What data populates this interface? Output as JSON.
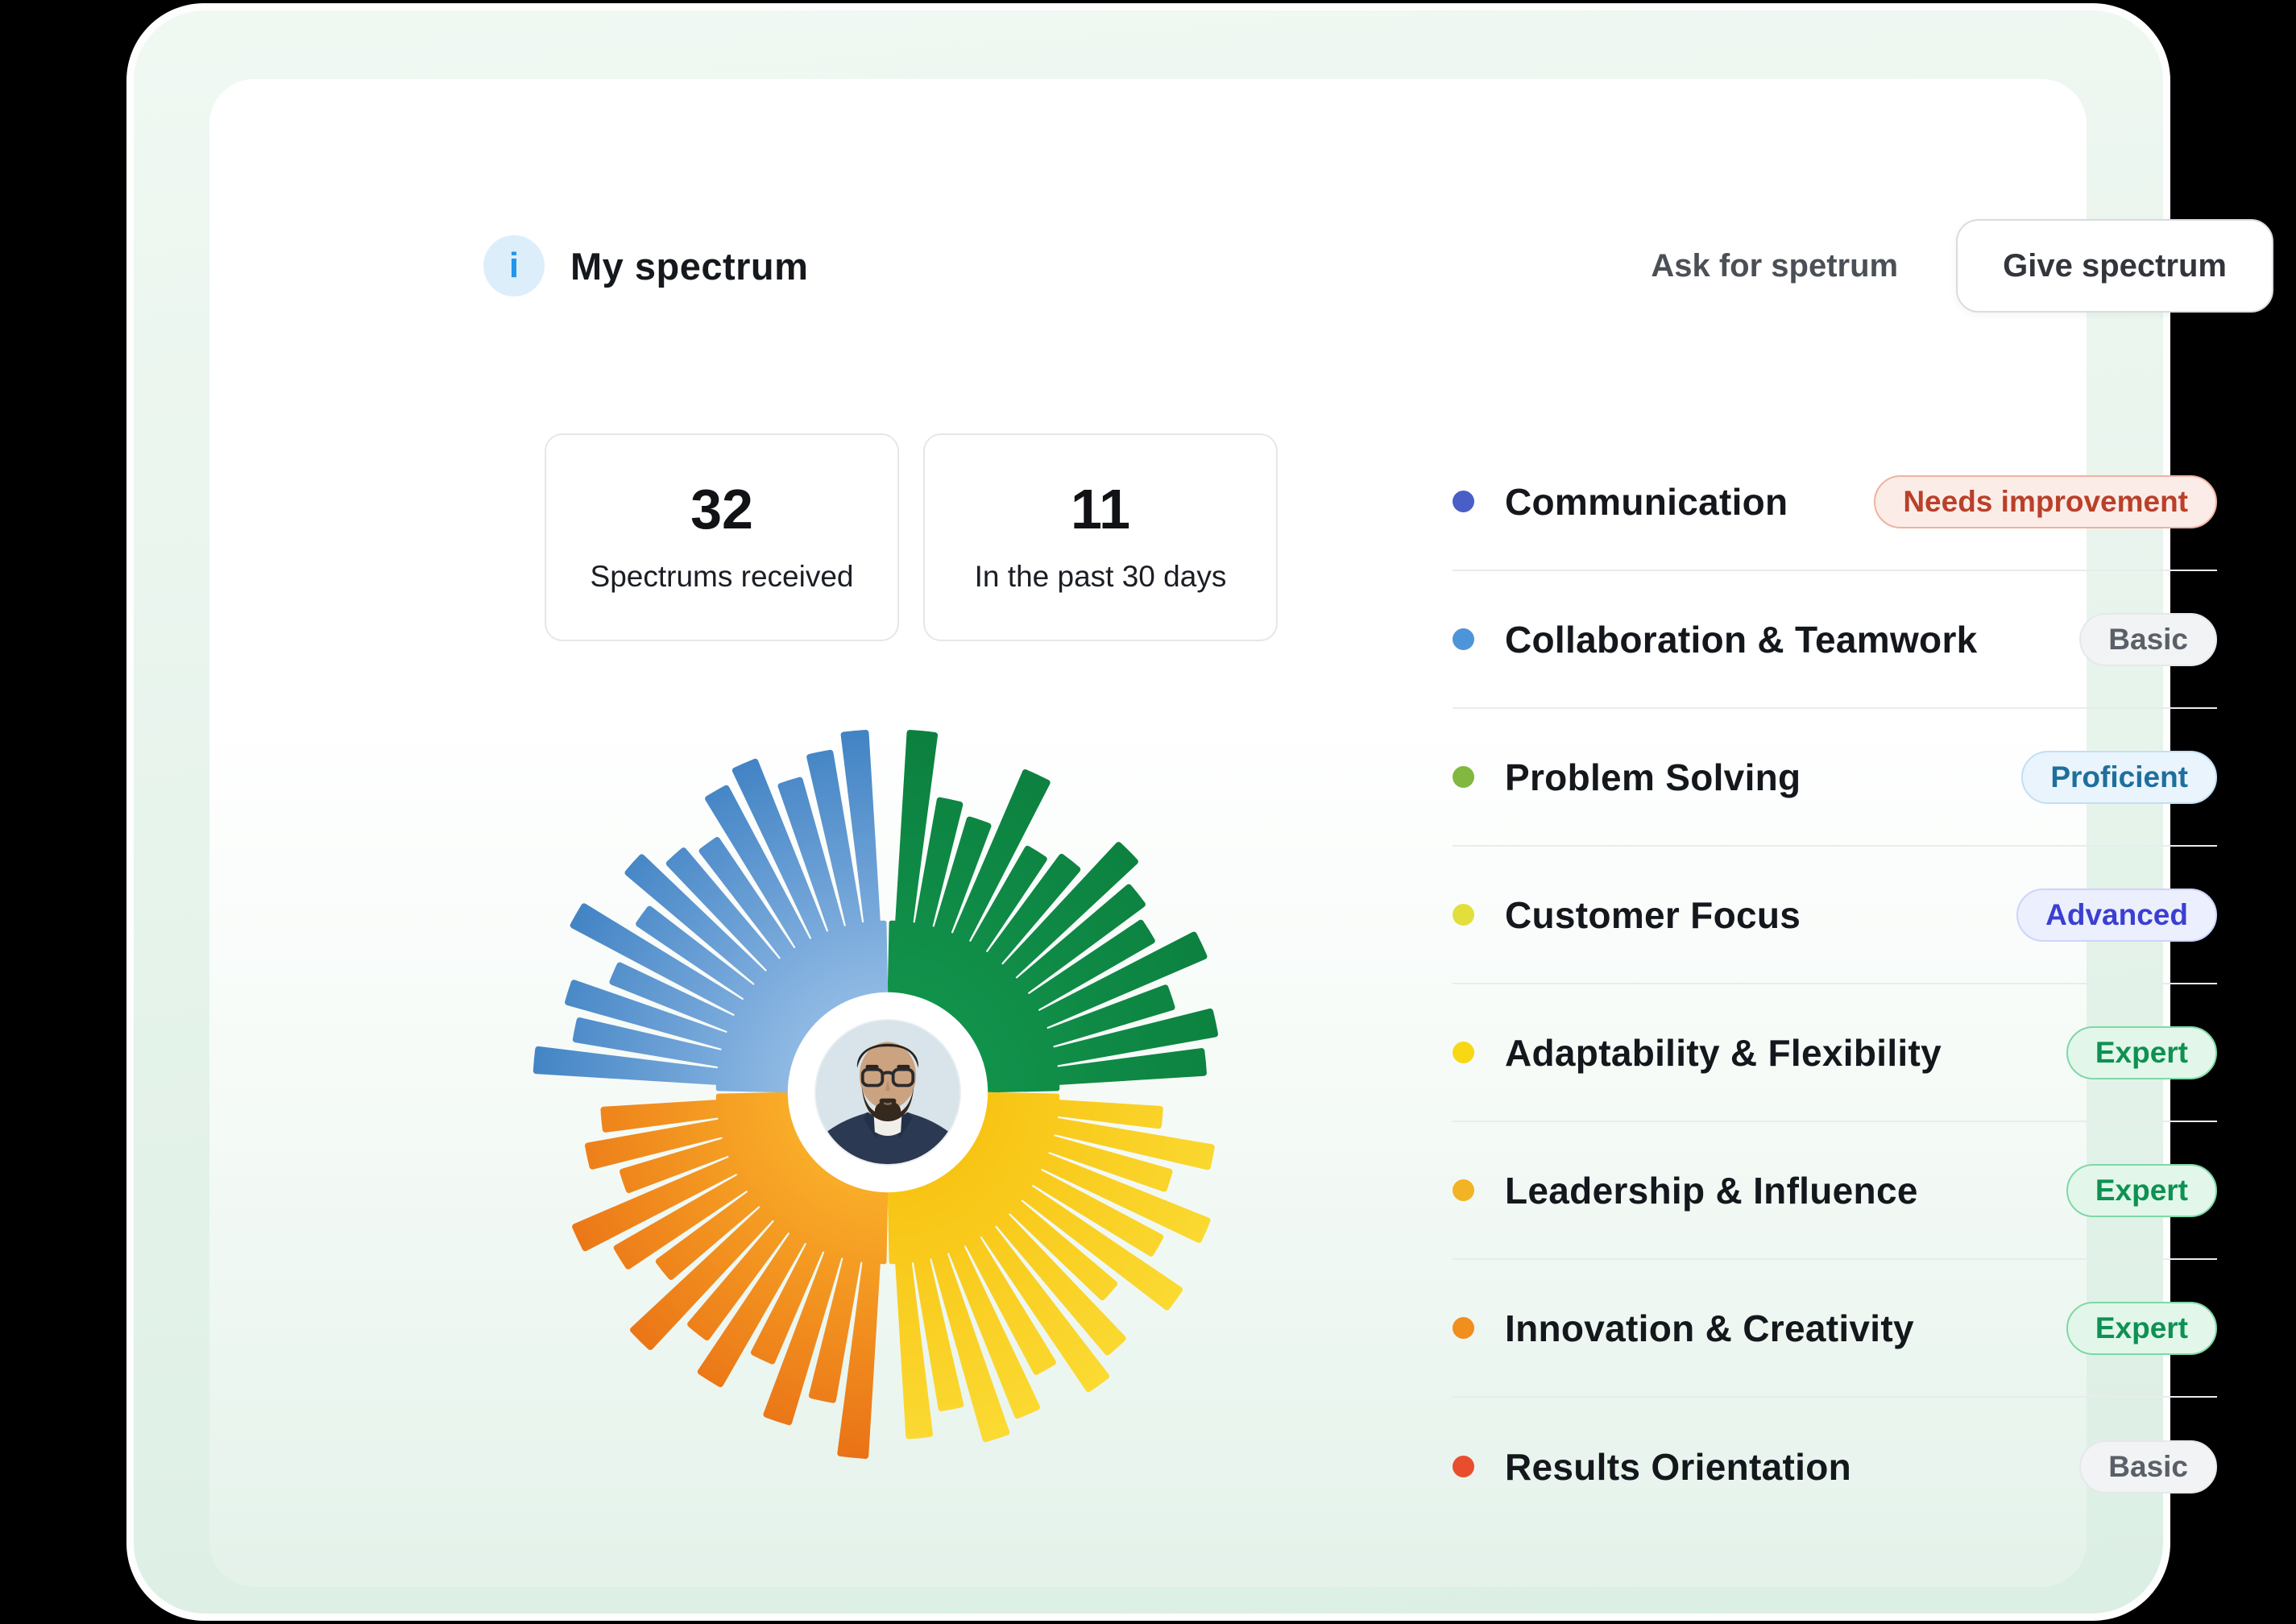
{
  "header": {
    "title": "My spectrum",
    "info_icon_glyph": "i",
    "ask_link_label": "Ask for spetrum",
    "give_button_label": "Give spectrum"
  },
  "stats": [
    {
      "value": "32",
      "label": "Spectrums received"
    },
    {
      "value": "11",
      "label": "In the past 30 days"
    }
  ],
  "skills": [
    {
      "name": "Communication",
      "dot_color": "#4a5ec8",
      "badge": {
        "label": "Needs improvement",
        "text_color": "#b9402a",
        "bg": "#fcece7",
        "border": "#eeb3a0"
      }
    },
    {
      "name": "Collaboration & Teamwork",
      "dot_color": "#4e94d9",
      "badge": {
        "label": "Basic",
        "text_color": "#5a6068",
        "bg": "#f2f3f4",
        "border": "#e6e8ea"
      }
    },
    {
      "name": "Problem Solving",
      "dot_color": "#82b740",
      "badge": {
        "label": "Proficient",
        "text_color": "#1e6f9d",
        "bg": "#eaf4fc",
        "border": "#c2dff6"
      }
    },
    {
      "name": "Customer Focus",
      "dot_color": "#e2df3d",
      "badge": {
        "label": "Advanced",
        "text_color": "#3b3fd1",
        "bg": "#eceffd",
        "border": "#cdd3fb"
      }
    },
    {
      "name": "Adaptability & Flexibility",
      "dot_color": "#f8d815",
      "badge": {
        "label": "Expert",
        "text_color": "#0e9152",
        "bg": "#e2f7ea",
        "border": "#7fd8a6"
      }
    },
    {
      "name": "Leadership & Influence",
      "dot_color": "#f2b424",
      "badge": {
        "label": "Expert",
        "text_color": "#0e9152",
        "bg": "#e2f7ea",
        "border": "#7fd8a6"
      }
    },
    {
      "name": "Innovation & Creativity",
      "dot_color": "#f08e1e",
      "badge": {
        "label": "Expert",
        "text_color": "#0e9152",
        "bg": "#e2f7ea",
        "border": "#7fd8a6"
      }
    },
    {
      "name": "Results Orientation",
      "dot_color": "#e84e2d",
      "badge": {
        "label": "Basic",
        "text_color": "#5a6068",
        "bg": "#f2f3f4",
        "border": "#e6e8ea"
      }
    }
  ],
  "chart_data": {
    "type": "radial-bar",
    "title": "Spectrum wheel around user avatar",
    "legend_position": "none",
    "grid": false,
    "value_scale": "bar length, 0-1 relative to maximum radius",
    "quadrants": [
      {
        "position": "top-right",
        "color_name": "green",
        "inner_color": "#11924b",
        "outer_color": "#0c7f3e",
        "values": [
          0.96,
          0.64,
          0.58,
          0.9,
          0.56,
          0.62,
          0.85,
          0.74,
          0.68,
          0.88,
          0.64,
          0.82,
          0.74
        ]
      },
      {
        "position": "bottom-right",
        "color_name": "yellow",
        "inner_color": "#f8c414",
        "outer_color": "#fbdc35",
        "values": [
          0.52,
          0.8,
          0.62,
          0.88,
          0.7,
          0.92,
          0.64,
          0.86,
          0.95,
          0.74,
          0.9,
          0.96,
          0.76,
          0.88
        ]
      },
      {
        "position": "bottom-left",
        "color_name": "orange",
        "inner_color": "#f9ad28",
        "outer_color": "#e96f15",
        "values": [
          0.98,
          0.72,
          0.88,
          0.62,
          0.84,
          0.68,
          0.9,
          0.58,
          0.72,
          0.86,
          0.54,
          0.68,
          0.58
        ]
      },
      {
        "position": "top-left",
        "color_name": "blue",
        "inner_color": "#8fb9e4",
        "outer_color": "#3c7fc2",
        "values": [
          0.92,
          0.74,
          0.82,
          0.64,
          0.94,
          0.66,
          0.86,
          0.74,
          0.68,
          0.88,
          0.94,
          0.78,
          0.88,
          0.96
        ]
      }
    ]
  },
  "theme": {
    "panel_green_top": "#f0f8f2",
    "panel_green_bottom": "#dcefe4",
    "info_icon_blue": "#2196ea",
    "divider": "#e9ebee"
  }
}
